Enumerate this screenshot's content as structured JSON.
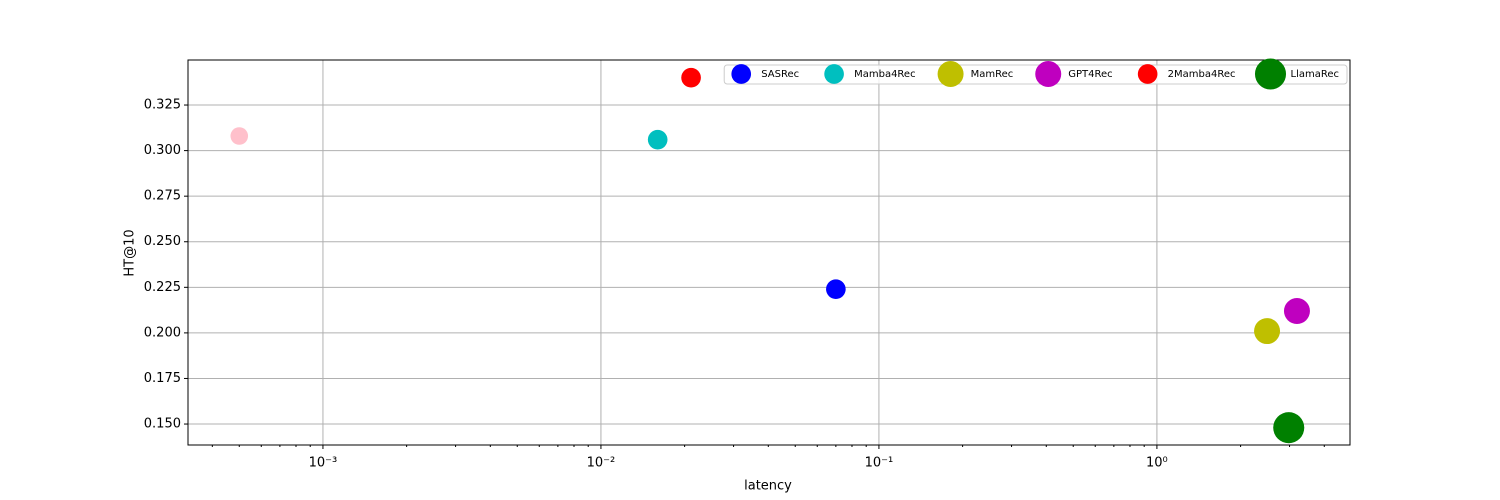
{
  "chart_data": {
    "type": "scatter",
    "x_label": "latency",
    "y_label": "HT@10",
    "x_scale": "log",
    "grid": true,
    "legend": "upper right",
    "xlim": [
      0.000327,
      4.95
    ],
    "ylim": [
      0.1385,
      0.3497
    ],
    "xticks": [
      {
        "value": 0.001,
        "label": "10⁻³"
      },
      {
        "value": 0.01,
        "label": "10⁻²"
      },
      {
        "value": 0.1,
        "label": "10⁻¹"
      },
      {
        "value": 1,
        "label": "10⁰"
      }
    ],
    "yticks": [
      {
        "value": 0.15,
        "label": "0.150"
      },
      0.175,
      {
        "value": 0.2,
        "label": "0.200"
      },
      0.225,
      {
        "value": 0.25,
        "label": "0.250"
      },
      0.275,
      {
        "value": 0.3,
        "label": "0.300"
      },
      0.325
    ],
    "series": [
      {
        "name": "SASRec",
        "color": "#0000ff",
        "x": [
          0.07
        ],
        "values": [
          0.224
        ],
        "size": [
          200
        ]
      },
      {
        "name": "Mamba4Rec",
        "color": "#00bfbf",
        "x": [
          0.016
        ],
        "values": [
          0.306
        ],
        "size": [
          200
        ]
      },
      {
        "name": "MamRec",
        "color": "#bfbf00",
        "x": [
          2.49
        ],
        "values": [
          0.201
        ],
        "size": [
          350
        ]
      },
      {
        "name": "GPT4Rec",
        "color": "#bf00bf",
        "x": [
          3.19
        ],
        "values": [
          0.212
        ],
        "size": [
          350
        ]
      },
      {
        "name": "2Mamba4Rec",
        "color": "#ff0000",
        "x": [
          0.0211
        ],
        "values": [
          0.34
        ],
        "size": [
          200
        ]
      },
      {
        "name": "LlamaRec",
        "color": "#008000",
        "x": [
          2.98
        ],
        "values": [
          0.148
        ],
        "size": [
          500
        ]
      },
      {
        "color": "#ffc0cb",
        "x": [
          0.0005
        ],
        "values": [
          0.308
        ],
        "size": [
          160
        ]
      }
    ]
  }
}
